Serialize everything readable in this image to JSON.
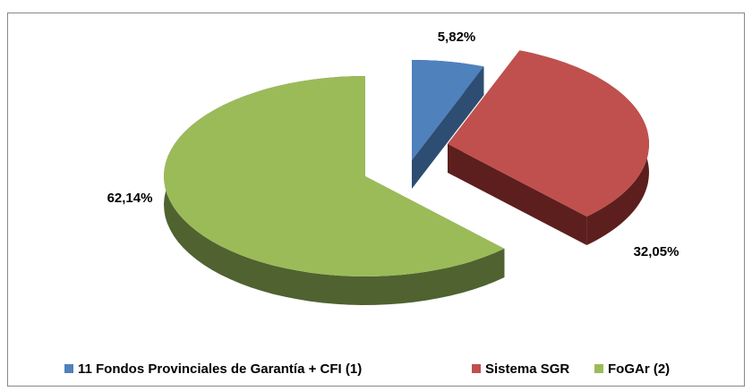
{
  "chart_data": {
    "type": "pie",
    "categories": [
      "11 Fondos Provinciales de Garantía + CFI (1)",
      "Sistema SGR",
      "FoGAr (2)"
    ],
    "values": [
      5.82,
      32.05,
      62.14
    ],
    "value_labels": [
      "5,82%",
      "32,05%",
      "62,14%"
    ],
    "colors": [
      "#4f81bd",
      "#c0504d",
      "#9bbb59"
    ],
    "side_colors": [
      "#2e4d72",
      "#5c1f1e",
      "#4f6230"
    ],
    "legend": "bottom"
  }
}
